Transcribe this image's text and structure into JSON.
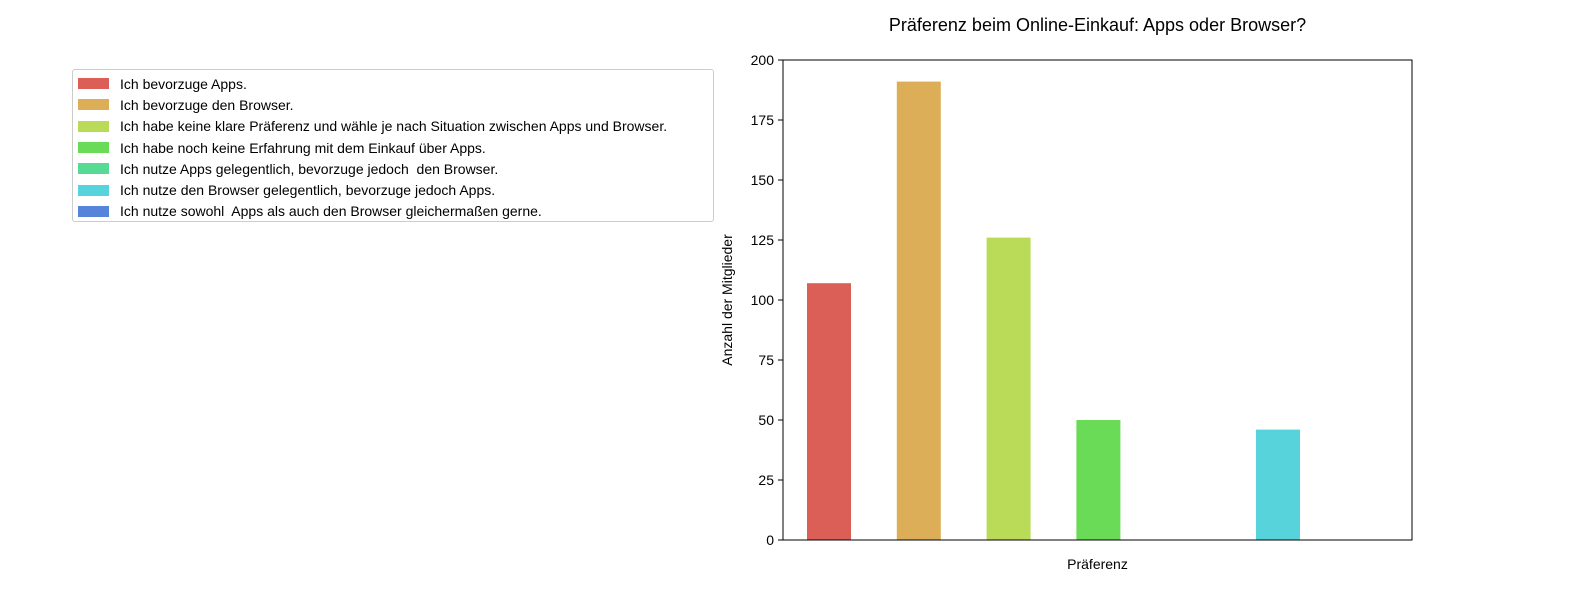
{
  "chart_data": {
    "type": "bar",
    "title": "Präferenz beim Online-Einkauf: Apps oder Browser?",
    "xlabel": "Präferenz",
    "ylabel": "Anzahl der Mitglieder",
    "ylim": [
      0,
      200
    ],
    "yticks": [
      "0",
      "25",
      "50",
      "75",
      "100",
      "125",
      "150",
      "175",
      "200"
    ],
    "grid": false,
    "legend_position": "outside-left",
    "categories": [
      "Ich bevorzuge Apps.",
      "Ich bevorzuge den Browser.",
      "Ich habe keine klare Präferenz und wähle je nach Situation zwischen Apps und Browser.",
      "Ich habe noch keine Erfahrung mit dem Einkauf über Apps.",
      "Ich nutze Apps gelegentlich, bevorzuge jedoch  den Browser.",
      "Ich nutze den Browser gelegentlich, bevorzuge jedoch Apps.",
      "Ich nutze sowohl  Apps als auch den Browser gleichermaßen gerne."
    ],
    "values": [
      107,
      191,
      126,
      50,
      0,
      46,
      0
    ],
    "colors": [
      "#db5f57",
      "#dbae57",
      "#b9db57",
      "#69db57",
      "#57db94",
      "#57d3db",
      "#5784db"
    ]
  }
}
